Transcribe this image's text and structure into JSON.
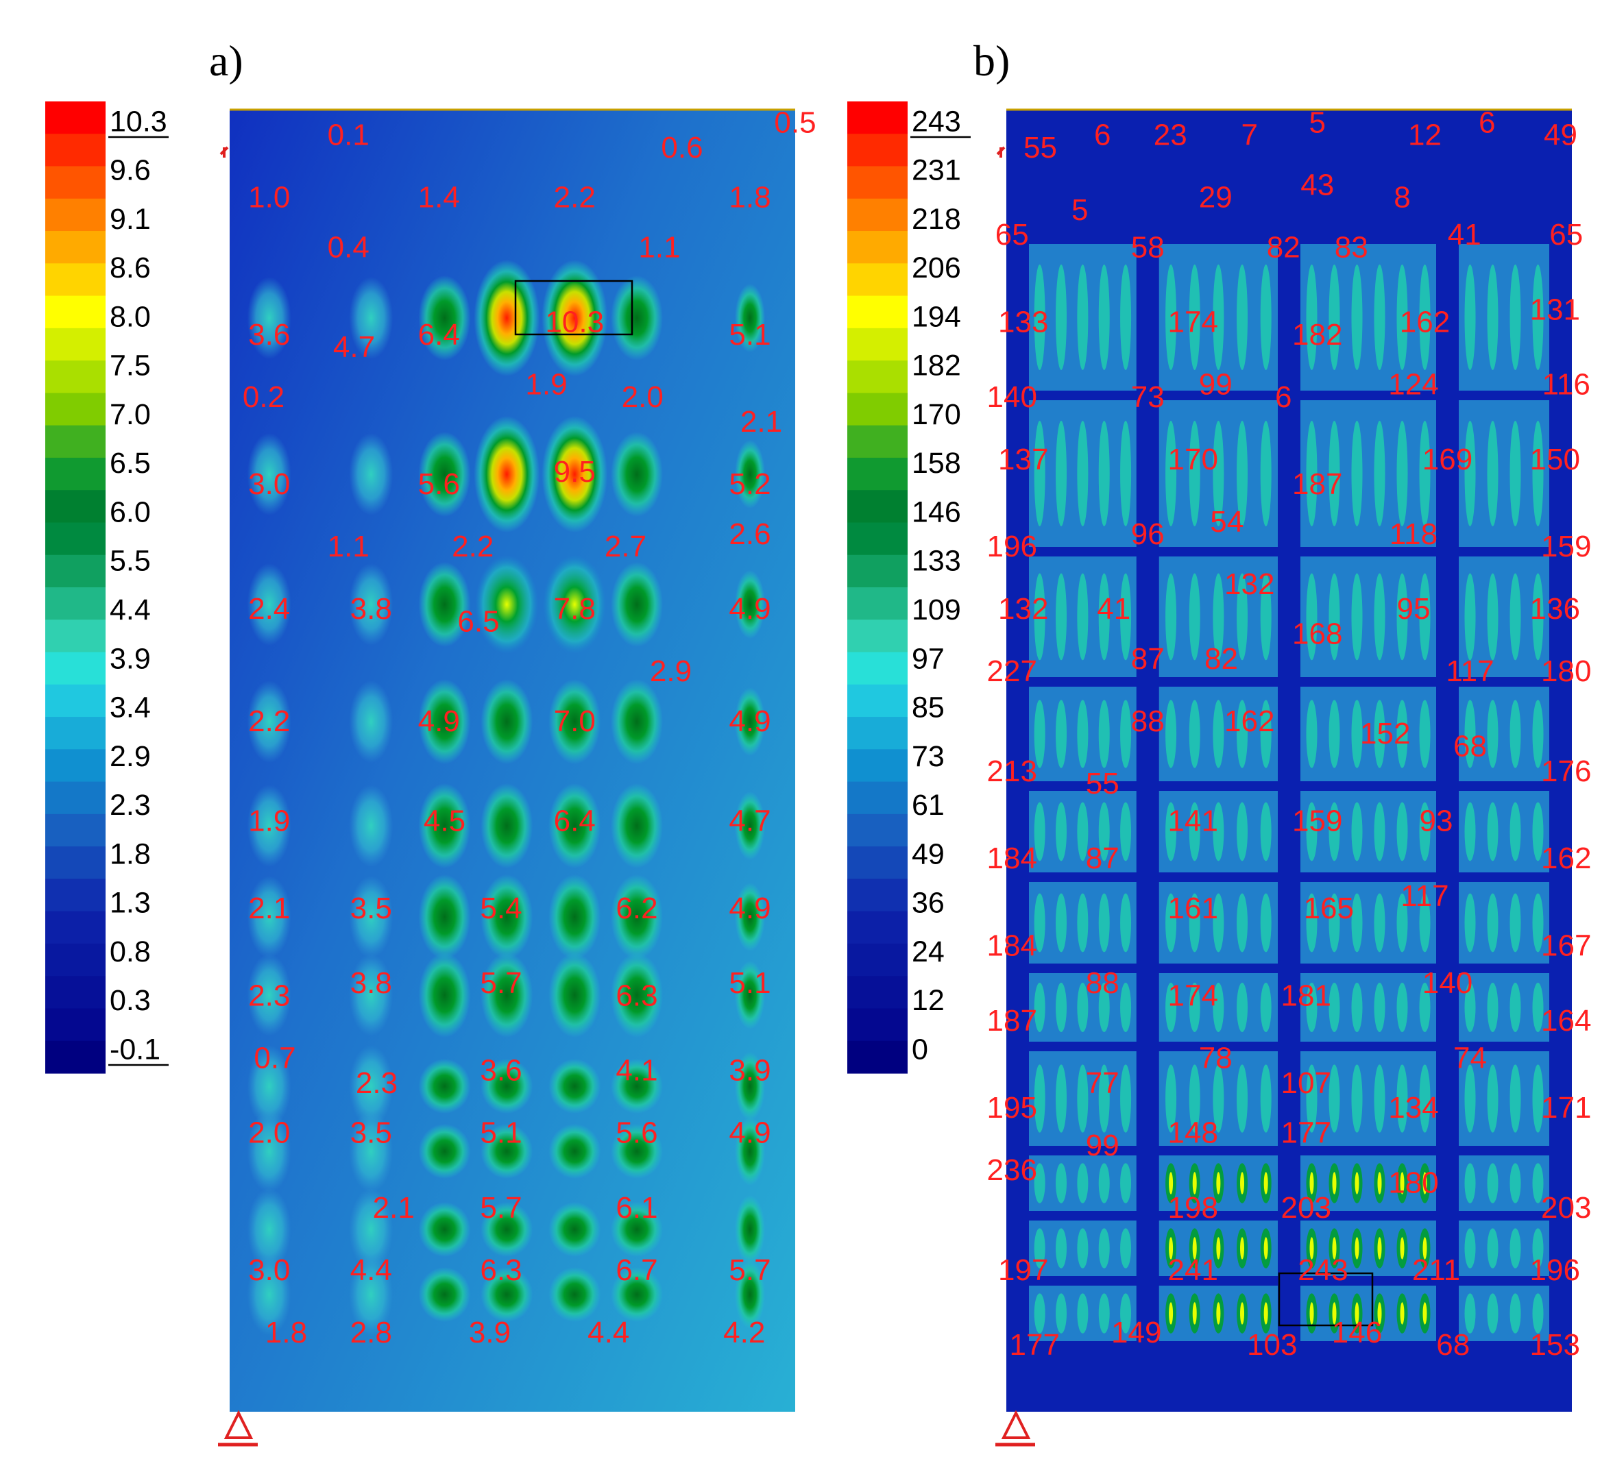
{
  "chart_data": [
    {
      "type": "heatmap",
      "panel_label": "a)",
      "title": "a)",
      "colorbar": {
        "ticks": [
          "10.3",
          "9.6",
          "9.1",
          "8.6",
          "8.0",
          "7.5",
          "7.0",
          "6.5",
          "6.0",
          "5.5",
          "4.4",
          "3.9",
          "3.4",
          "2.9",
          "2.3",
          "1.8",
          "1.3",
          "0.8",
          "0.3",
          "-0.1"
        ],
        "min": -0.1,
        "max": 10.3
      },
      "max_value": "10.3",
      "annotations": [
        {
          "t": "0.1",
          "x": 0.21,
          "y": 0.0
        },
        {
          "t": "0.5",
          "x": 1.0,
          "y": -0.01
        },
        {
          "t": "0.6",
          "x": 0.8,
          "y": 0.01
        },
        {
          "t": "1.0",
          "x": 0.07,
          "y": 0.05
        },
        {
          "t": "1.4",
          "x": 0.37,
          "y": 0.05
        },
        {
          "t": "2.2",
          "x": 0.61,
          "y": 0.05
        },
        {
          "t": "1.8",
          "x": 0.92,
          "y": 0.05
        },
        {
          "t": "0.4",
          "x": 0.21,
          "y": 0.09
        },
        {
          "t": "1.1",
          "x": 0.76,
          "y": 0.09
        },
        {
          "t": "3.6",
          "x": 0.07,
          "y": 0.16
        },
        {
          "t": "4.7",
          "x": 0.22,
          "y": 0.17
        },
        {
          "t": "6.4",
          "x": 0.37,
          "y": 0.16
        },
        {
          "t": "10.3",
          "x": 0.61,
          "y": 0.15
        },
        {
          "t": "5.1",
          "x": 0.92,
          "y": 0.16
        },
        {
          "t": "0.2",
          "x": 0.06,
          "y": 0.21
        },
        {
          "t": "1.9",
          "x": 0.56,
          "y": 0.2
        },
        {
          "t": "2.0",
          "x": 0.73,
          "y": 0.21
        },
        {
          "t": "2.1",
          "x": 0.94,
          "y": 0.23
        },
        {
          "t": "3.0",
          "x": 0.07,
          "y": 0.28
        },
        {
          "t": "5.6",
          "x": 0.37,
          "y": 0.28
        },
        {
          "t": "9.5",
          "x": 0.61,
          "y": 0.27
        },
        {
          "t": "5.2",
          "x": 0.92,
          "y": 0.28
        },
        {
          "t": "1.1",
          "x": 0.21,
          "y": 0.33
        },
        {
          "t": "2.2",
          "x": 0.43,
          "y": 0.33
        },
        {
          "t": "2.7",
          "x": 0.7,
          "y": 0.33
        },
        {
          "t": "2.6",
          "x": 0.92,
          "y": 0.32
        },
        {
          "t": "2.4",
          "x": 0.07,
          "y": 0.38
        },
        {
          "t": "3.8",
          "x": 0.25,
          "y": 0.38
        },
        {
          "t": "6.5",
          "x": 0.44,
          "y": 0.39
        },
        {
          "t": "7.8",
          "x": 0.61,
          "y": 0.38
        },
        {
          "t": "4.9",
          "x": 0.92,
          "y": 0.38
        },
        {
          "t": "2.9",
          "x": 0.78,
          "y": 0.43
        },
        {
          "t": "2.2",
          "x": 0.07,
          "y": 0.47
        },
        {
          "t": "4.9",
          "x": 0.37,
          "y": 0.47
        },
        {
          "t": "7.0",
          "x": 0.61,
          "y": 0.47
        },
        {
          "t": "4.9",
          "x": 0.92,
          "y": 0.47
        },
        {
          "t": "1.9",
          "x": 0.07,
          "y": 0.55
        },
        {
          "t": "4.5",
          "x": 0.38,
          "y": 0.55
        },
        {
          "t": "6.4",
          "x": 0.61,
          "y": 0.55
        },
        {
          "t": "4.7",
          "x": 0.92,
          "y": 0.55
        },
        {
          "t": "2.1",
          "x": 0.07,
          "y": 0.62
        },
        {
          "t": "3.5",
          "x": 0.25,
          "y": 0.62
        },
        {
          "t": "5.4",
          "x": 0.48,
          "y": 0.62
        },
        {
          "t": "6.2",
          "x": 0.72,
          "y": 0.62
        },
        {
          "t": "4.9",
          "x": 0.92,
          "y": 0.62
        },
        {
          "t": "2.3",
          "x": 0.07,
          "y": 0.69
        },
        {
          "t": "3.8",
          "x": 0.25,
          "y": 0.68
        },
        {
          "t": "5.7",
          "x": 0.48,
          "y": 0.68
        },
        {
          "t": "6.3",
          "x": 0.72,
          "y": 0.69
        },
        {
          "t": "5.1",
          "x": 0.92,
          "y": 0.68
        },
        {
          "t": "0.7",
          "x": 0.08,
          "y": 0.74
        },
        {
          "t": "2.3",
          "x": 0.26,
          "y": 0.76
        },
        {
          "t": "3.6",
          "x": 0.48,
          "y": 0.75
        },
        {
          "t": "4.1",
          "x": 0.72,
          "y": 0.75
        },
        {
          "t": "3.9",
          "x": 0.92,
          "y": 0.75
        },
        {
          "t": "2.0",
          "x": 0.07,
          "y": 0.8
        },
        {
          "t": "3.5",
          "x": 0.25,
          "y": 0.8
        },
        {
          "t": "5.1",
          "x": 0.48,
          "y": 0.8
        },
        {
          "t": "5.6",
          "x": 0.72,
          "y": 0.8
        },
        {
          "t": "4.9",
          "x": 0.92,
          "y": 0.8
        },
        {
          "t": "2.1",
          "x": 0.29,
          "y": 0.86
        },
        {
          "t": "5.7",
          "x": 0.48,
          "y": 0.86
        },
        {
          "t": "6.1",
          "x": 0.72,
          "y": 0.86
        },
        {
          "t": "3.0",
          "x": 0.07,
          "y": 0.91
        },
        {
          "t": "4.4",
          "x": 0.25,
          "y": 0.91
        },
        {
          "t": "6.3",
          "x": 0.48,
          "y": 0.91
        },
        {
          "t": "6.7",
          "x": 0.72,
          "y": 0.91
        },
        {
          "t": "5.7",
          "x": 0.92,
          "y": 0.91
        },
        {
          "t": "1.8",
          "x": 0.1,
          "y": 0.96
        },
        {
          "t": "2.8",
          "x": 0.25,
          "y": 0.96
        },
        {
          "t": "3.9",
          "x": 0.46,
          "y": 0.96
        },
        {
          "t": "4.4",
          "x": 0.67,
          "y": 0.96
        },
        {
          "t": "4.2",
          "x": 0.91,
          "y": 0.96
        }
      ]
    },
    {
      "type": "heatmap",
      "panel_label": "b)",
      "title": "b)",
      "colorbar": {
        "ticks": [
          "243",
          "231",
          "218",
          "206",
          "194",
          "182",
          "170",
          "158",
          "146",
          "133",
          "109",
          "97",
          "85",
          "73",
          "61",
          "49",
          "36",
          "24",
          "12",
          "0"
        ],
        "min": 0,
        "max": 243
      },
      "max_value": "243",
      "annotations": [
        {
          "t": "55",
          "x": 0.06,
          "y": 0.01
        },
        {
          "t": "6",
          "x": 0.17,
          "y": 0.0
        },
        {
          "t": "23",
          "x": 0.29,
          "y": 0.0
        },
        {
          "t": "7",
          "x": 0.43,
          "y": 0.0
        },
        {
          "t": "5",
          "x": 0.55,
          "y": -0.01
        },
        {
          "t": "12",
          "x": 0.74,
          "y": 0.0
        },
        {
          "t": "6",
          "x": 0.85,
          "y": -0.01
        },
        {
          "t": "49",
          "x": 0.98,
          "y": 0.0
        },
        {
          "t": "5",
          "x": 0.13,
          "y": 0.06
        },
        {
          "t": "29",
          "x": 0.37,
          "y": 0.05
        },
        {
          "t": "43",
          "x": 0.55,
          "y": 0.04
        },
        {
          "t": "8",
          "x": 0.7,
          "y": 0.05
        },
        {
          "t": "65",
          "x": 0.01,
          "y": 0.08
        },
        {
          "t": "58",
          "x": 0.25,
          "y": 0.09
        },
        {
          "t": "82",
          "x": 0.49,
          "y": 0.09
        },
        {
          "t": "83",
          "x": 0.61,
          "y": 0.09
        },
        {
          "t": "41",
          "x": 0.81,
          "y": 0.08
        },
        {
          "t": "65",
          "x": 0.99,
          "y": 0.08
        },
        {
          "t": "133",
          "x": 0.03,
          "y": 0.15
        },
        {
          "t": "174",
          "x": 0.33,
          "y": 0.15
        },
        {
          "t": "182",
          "x": 0.55,
          "y": 0.16
        },
        {
          "t": "162",
          "x": 0.74,
          "y": 0.15
        },
        {
          "t": "131",
          "x": 0.97,
          "y": 0.14
        },
        {
          "t": "140",
          "x": 0.01,
          "y": 0.21
        },
        {
          "t": "73",
          "x": 0.25,
          "y": 0.21
        },
        {
          "t": "99",
          "x": 0.37,
          "y": 0.2
        },
        {
          "t": "6",
          "x": 0.49,
          "y": 0.21
        },
        {
          "t": "124",
          "x": 0.72,
          "y": 0.2
        },
        {
          "t": "116",
          "x": 0.99,
          "y": 0.2
        },
        {
          "t": "137",
          "x": 0.03,
          "y": 0.26
        },
        {
          "t": "170",
          "x": 0.33,
          "y": 0.26
        },
        {
          "t": "187",
          "x": 0.55,
          "y": 0.28
        },
        {
          "t": "169",
          "x": 0.78,
          "y": 0.26
        },
        {
          "t": "150",
          "x": 0.97,
          "y": 0.26
        },
        {
          "t": "196",
          "x": 0.01,
          "y": 0.33
        },
        {
          "t": "96",
          "x": 0.25,
          "y": 0.32
        },
        {
          "t": "54",
          "x": 0.39,
          "y": 0.31
        },
        {
          "t": "118",
          "x": 0.72,
          "y": 0.32
        },
        {
          "t": "159",
          "x": 0.99,
          "y": 0.33
        },
        {
          "t": "132",
          "x": 0.03,
          "y": 0.38
        },
        {
          "t": "41",
          "x": 0.19,
          "y": 0.38
        },
        {
          "t": "132",
          "x": 0.43,
          "y": 0.36
        },
        {
          "t": "95",
          "x": 0.72,
          "y": 0.38
        },
        {
          "t": "136",
          "x": 0.97,
          "y": 0.38
        },
        {
          "t": "168",
          "x": 0.55,
          "y": 0.4
        },
        {
          "t": "227",
          "x": 0.01,
          "y": 0.43
        },
        {
          "t": "87",
          "x": 0.25,
          "y": 0.42
        },
        {
          "t": "82",
          "x": 0.38,
          "y": 0.42
        },
        {
          "t": "117",
          "x": 0.82,
          "y": 0.43
        },
        {
          "t": "180",
          "x": 0.99,
          "y": 0.43
        },
        {
          "t": "88",
          "x": 0.25,
          "y": 0.47
        },
        {
          "t": "162",
          "x": 0.43,
          "y": 0.47
        },
        {
          "t": "152",
          "x": 0.67,
          "y": 0.48
        },
        {
          "t": "68",
          "x": 0.82,
          "y": 0.49
        },
        {
          "t": "213",
          "x": 0.01,
          "y": 0.51
        },
        {
          "t": "55",
          "x": 0.17,
          "y": 0.52
        },
        {
          "t": "176",
          "x": 0.99,
          "y": 0.51
        },
        {
          "t": "141",
          "x": 0.33,
          "y": 0.55
        },
        {
          "t": "159",
          "x": 0.55,
          "y": 0.55
        },
        {
          "t": "93",
          "x": 0.76,
          "y": 0.55
        },
        {
          "t": "184",
          "x": 0.01,
          "y": 0.58
        },
        {
          "t": "87",
          "x": 0.17,
          "y": 0.58
        },
        {
          "t": "162",
          "x": 0.99,
          "y": 0.58
        },
        {
          "t": "161",
          "x": 0.33,
          "y": 0.62
        },
        {
          "t": "165",
          "x": 0.57,
          "y": 0.62
        },
        {
          "t": "117",
          "x": 0.74,
          "y": 0.61
        },
        {
          "t": "184",
          "x": 0.01,
          "y": 0.65
        },
        {
          "t": "167",
          "x": 0.99,
          "y": 0.65
        },
        {
          "t": "88",
          "x": 0.17,
          "y": 0.68
        },
        {
          "t": "174",
          "x": 0.33,
          "y": 0.69
        },
        {
          "t": "181",
          "x": 0.53,
          "y": 0.69
        },
        {
          "t": "140",
          "x": 0.78,
          "y": 0.68
        },
        {
          "t": "187",
          "x": 0.01,
          "y": 0.71
        },
        {
          "t": "164",
          "x": 0.99,
          "y": 0.71
        },
        {
          "t": "78",
          "x": 0.37,
          "y": 0.74
        },
        {
          "t": "107",
          "x": 0.53,
          "y": 0.76
        },
        {
          "t": "74",
          "x": 0.82,
          "y": 0.74
        },
        {
          "t": "77",
          "x": 0.17,
          "y": 0.76
        },
        {
          "t": "195",
          "x": 0.01,
          "y": 0.78
        },
        {
          "t": "134",
          "x": 0.72,
          "y": 0.78
        },
        {
          "t": "171",
          "x": 0.99,
          "y": 0.78
        },
        {
          "t": "99",
          "x": 0.17,
          "y": 0.81
        },
        {
          "t": "148",
          "x": 0.33,
          "y": 0.8
        },
        {
          "t": "177",
          "x": 0.53,
          "y": 0.8
        },
        {
          "t": "236",
          "x": 0.01,
          "y": 0.83
        },
        {
          "t": "180",
          "x": 0.72,
          "y": 0.84
        },
        {
          "t": "198",
          "x": 0.33,
          "y": 0.86
        },
        {
          "t": "203",
          "x": 0.53,
          "y": 0.86
        },
        {
          "t": "203",
          "x": 0.99,
          "y": 0.86
        },
        {
          "t": "197",
          "x": 0.03,
          "y": 0.91
        },
        {
          "t": "241",
          "x": 0.33,
          "y": 0.91
        },
        {
          "t": "243",
          "x": 0.56,
          "y": 0.91
        },
        {
          "t": "211",
          "x": 0.76,
          "y": 0.91
        },
        {
          "t": "196",
          "x": 0.97,
          "y": 0.91
        },
        {
          "t": "177",
          "x": 0.05,
          "y": 0.97
        },
        {
          "t": "149",
          "x": 0.23,
          "y": 0.96
        },
        {
          "t": "103",
          "x": 0.47,
          "y": 0.97
        },
        {
          "t": "146",
          "x": 0.62,
          "y": 0.96
        },
        {
          "t": "68",
          "x": 0.79,
          "y": 0.97
        },
        {
          "t": "153",
          "x": 0.97,
          "y": 0.97
        }
      ]
    }
  ]
}
